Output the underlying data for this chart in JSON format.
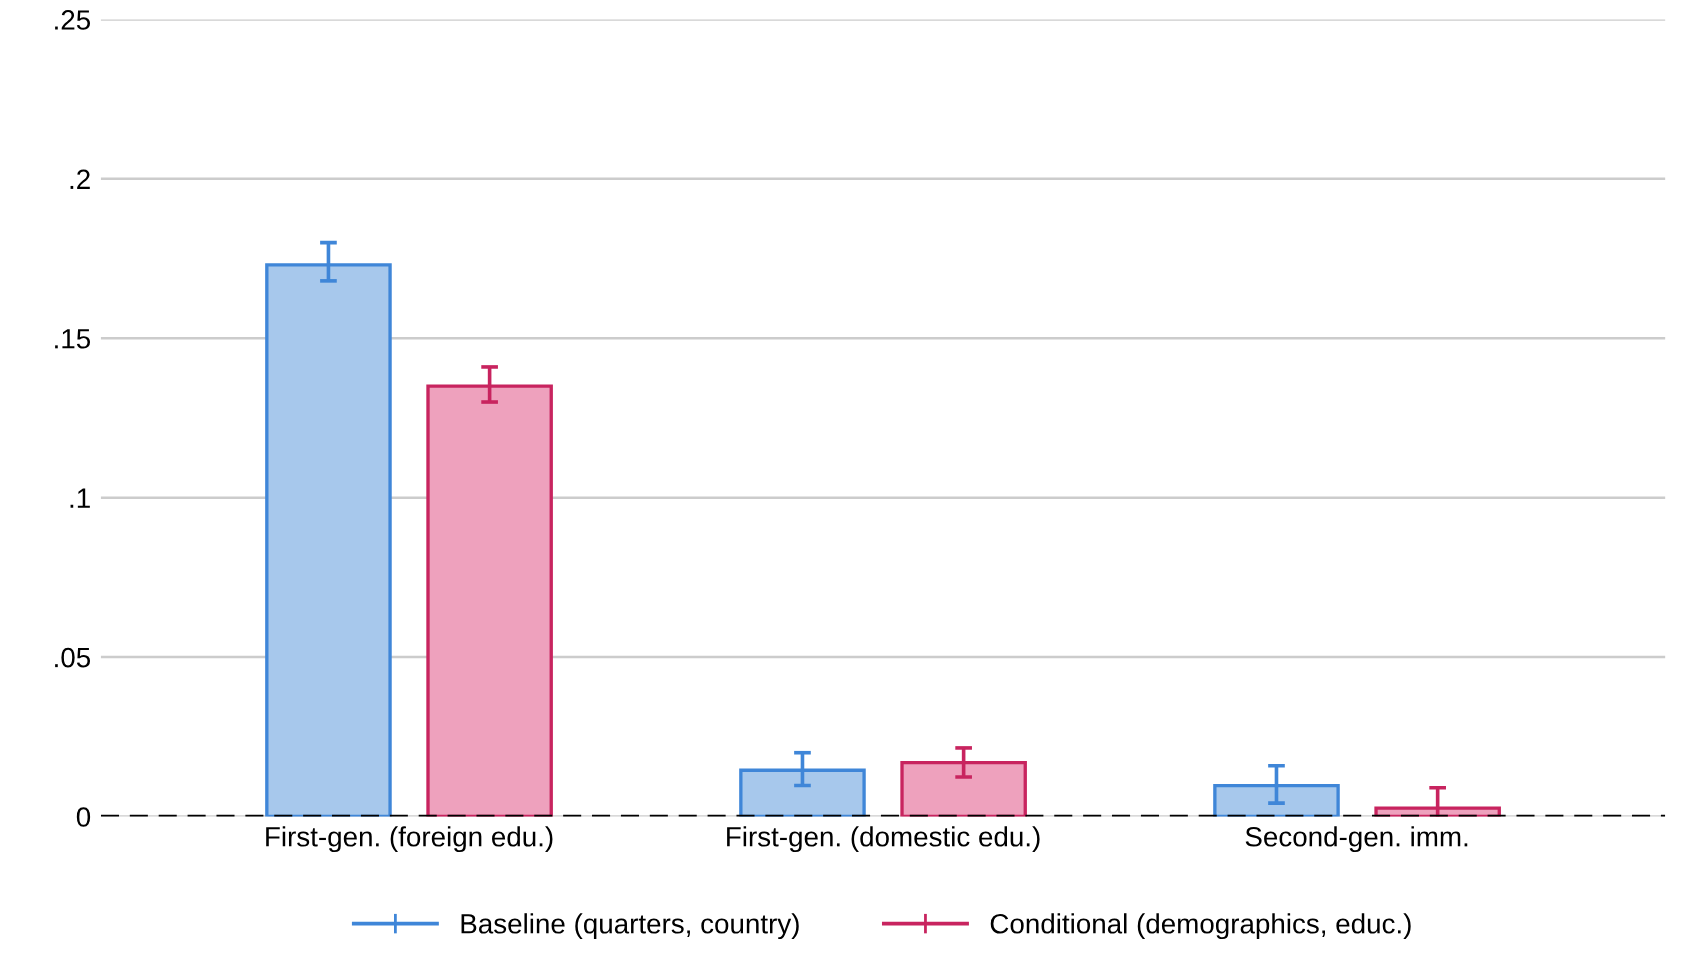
{
  "chart_data": {
    "type": "bar",
    "categories": [
      "First-gen. (foreign edu.)",
      "First-gen. (domestic edu.)",
      "Second-gen. imm."
    ],
    "series": [
      {
        "name": "Baseline (quarters, country)",
        "color": "#a7c8ec",
        "values": [
          0.173,
          0.0145,
          0.0097
        ],
        "errors": [
          [
            0.168,
            0.18
          ],
          [
            0.0097,
            0.02
          ],
          [
            0.0042,
            0.0159
          ]
        ]
      },
      {
        "name": "Conditional (demographics, educ.)",
        "color": "#eea1bd",
        "values": [
          0.135,
          0.0169,
          0.0026
        ],
        "errors": [
          [
            0.13,
            0.141
          ],
          [
            0.0124,
            0.0215
          ],
          [
            -0.0037,
            0.009
          ]
        ]
      }
    ],
    "ylim": [
      0,
      0.25
    ],
    "yticks": [
      {
        "value": 0,
        "label": "0"
      },
      {
        "value": 0.05,
        "label": ".05"
      },
      {
        "value": 0.1,
        "label": ".1"
      },
      {
        "value": 0.15,
        "label": ".15"
      },
      {
        "value": 0.2,
        "label": ".2"
      },
      {
        "value": 0.25,
        "label": ".25"
      }
    ],
    "grid": "y",
    "legend": "bottom",
    "ref_lines": [
      {
        "axis": "y",
        "value": 0,
        "color": "#000000",
        "line_style": "dashed"
      }
    ]
  }
}
